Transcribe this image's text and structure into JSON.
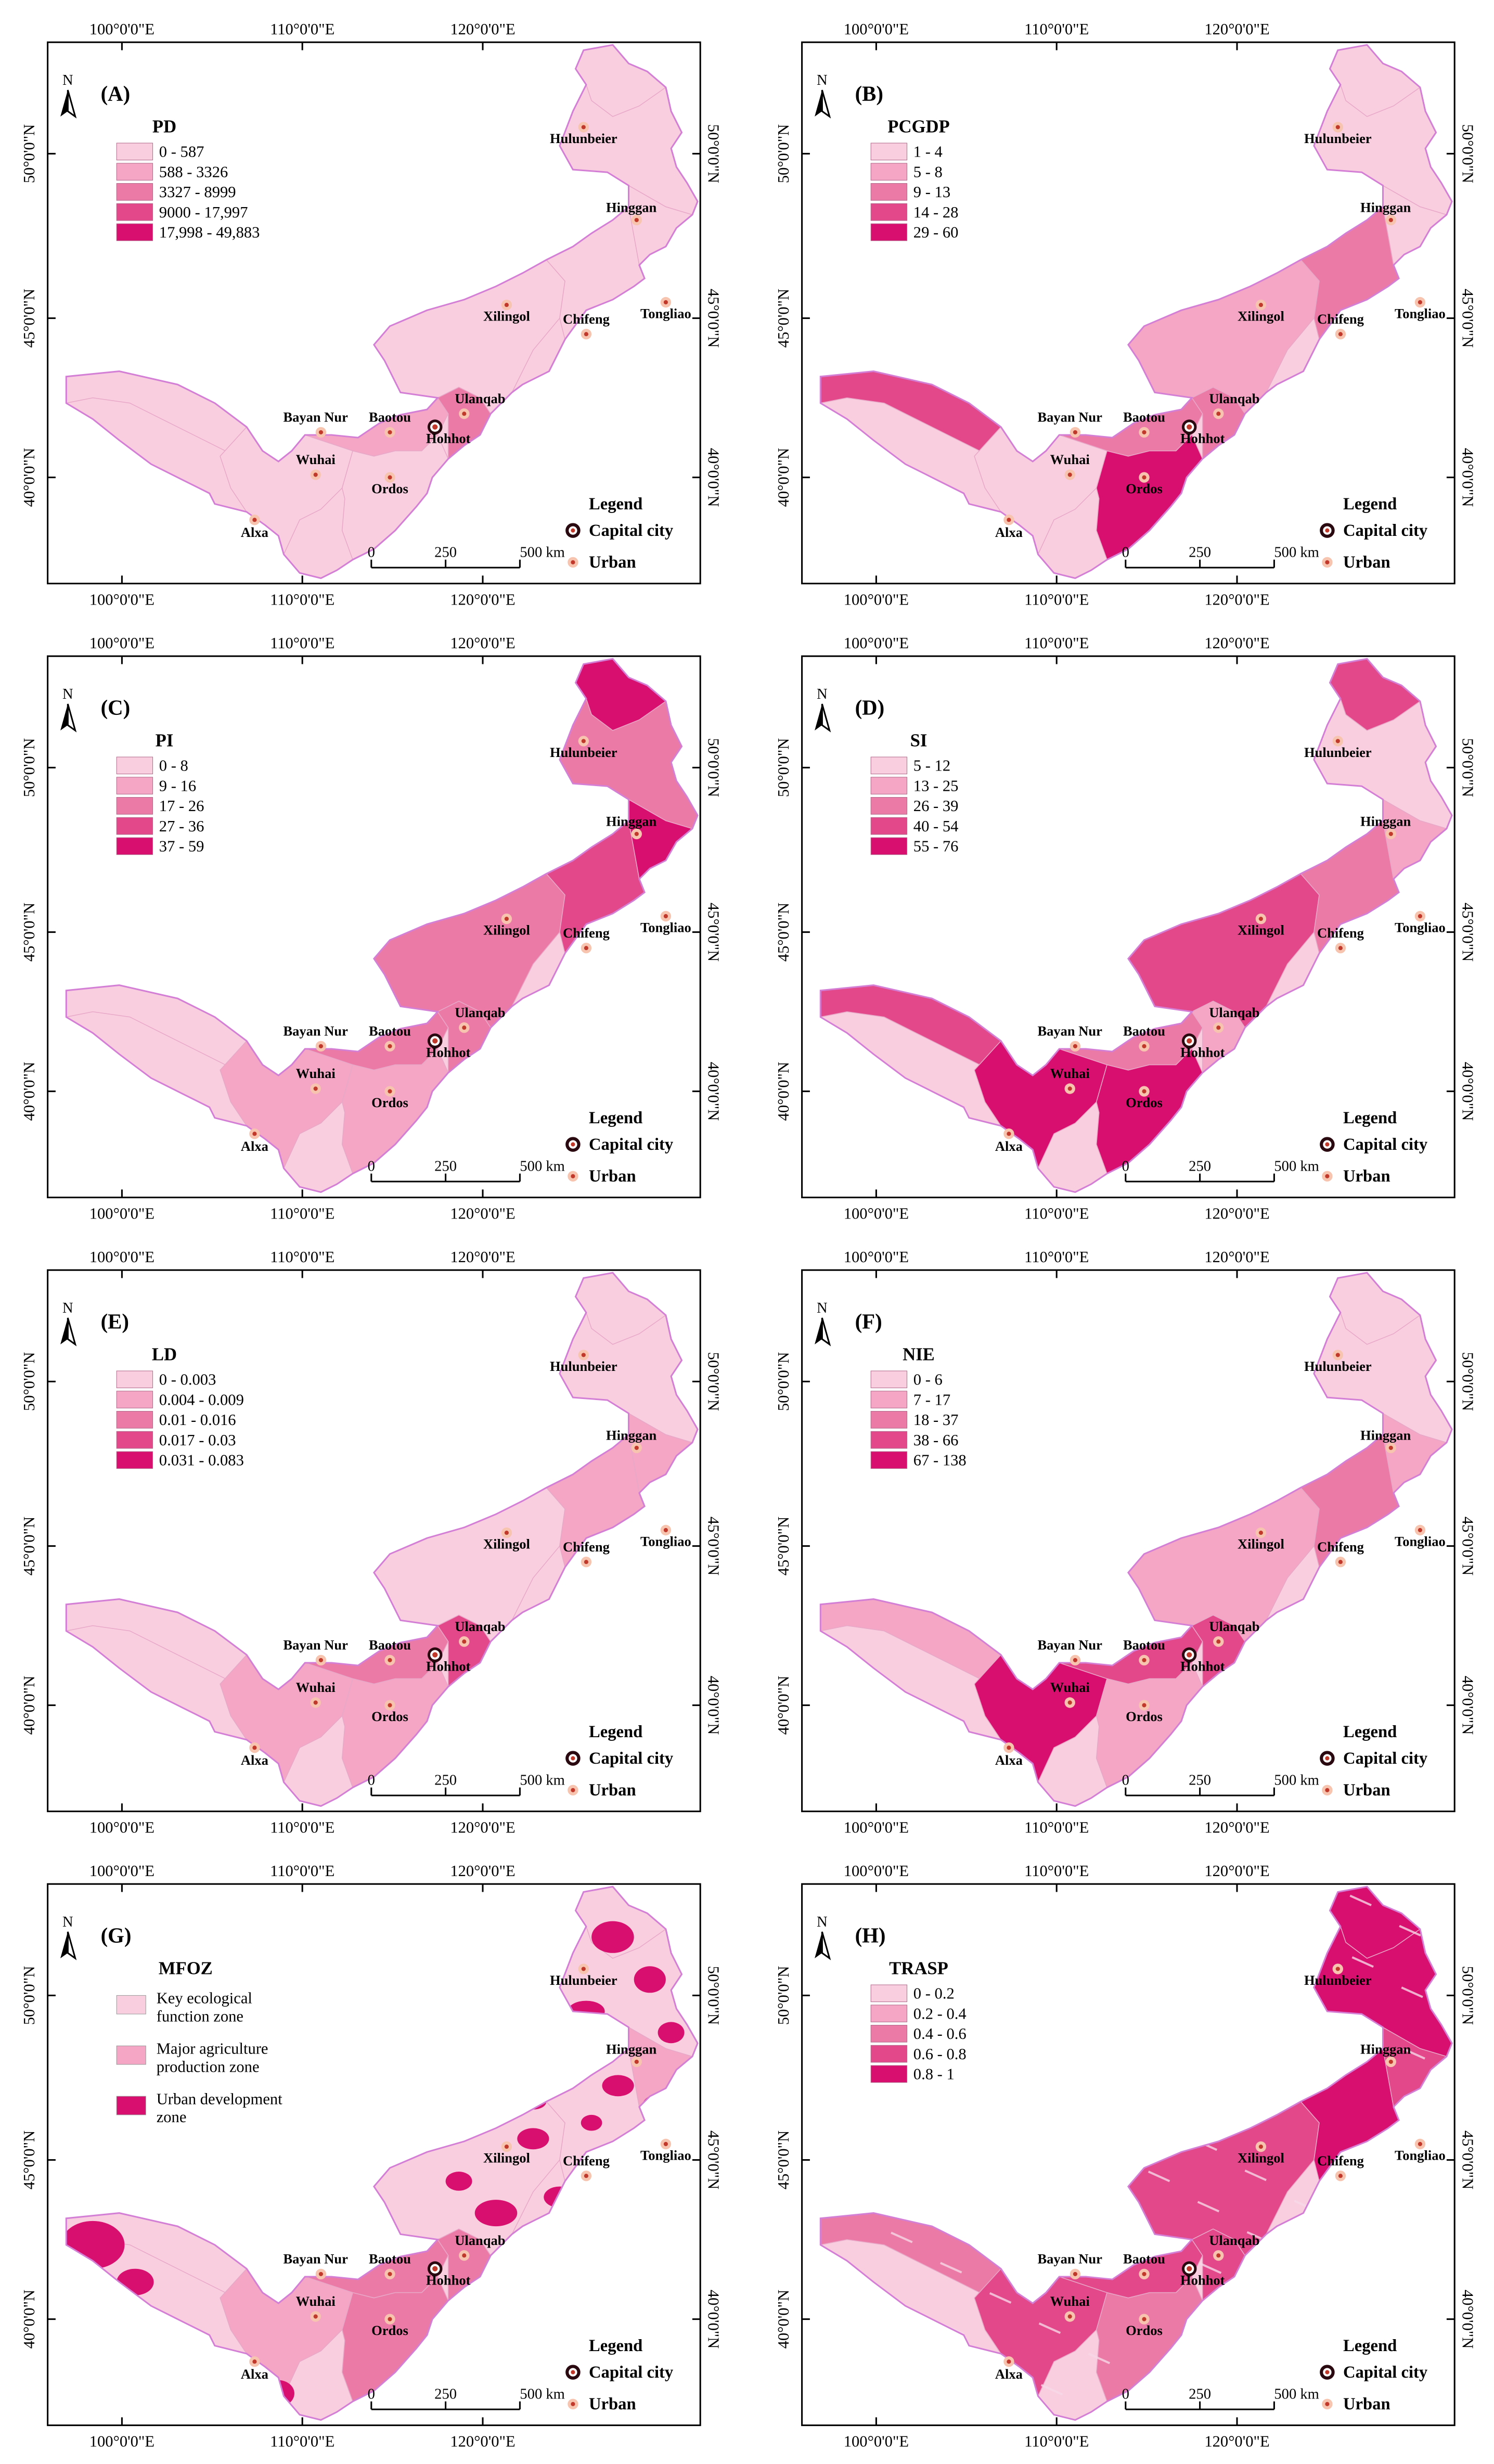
{
  "axis_labels": {
    "top": [
      "100°0'0\"E",
      "110°0'0\"E",
      "120°0'0\"E"
    ],
    "bottom": [
      "100°0'0\"E",
      "110°0'0\"E",
      "120°0'0\"E"
    ],
    "left": [
      "50°0'0\"N",
      "45°0'0\"N",
      "40°0'0\"N"
    ],
    "right": [
      "50°0'0\"N",
      "45°0'0\"N",
      "40°0'0\"N"
    ]
  },
  "north_label": "N",
  "cities": [
    {
      "name": "Hulunbeier",
      "type": "urban"
    },
    {
      "name": "Hinggan",
      "type": "urban"
    },
    {
      "name": "Xilingol",
      "type": "urban"
    },
    {
      "name": "Tongliao",
      "type": "urban"
    },
    {
      "name": "Chifeng",
      "type": "urban"
    },
    {
      "name": "Ulanqab",
      "type": "urban"
    },
    {
      "name": "Bayan Nur",
      "type": "urban"
    },
    {
      "name": "Baotou",
      "type": "urban"
    },
    {
      "name": "Hohhot",
      "type": "capital"
    },
    {
      "name": "Wuhai",
      "type": "urban"
    },
    {
      "name": "Ordos",
      "type": "urban"
    },
    {
      "name": "Alxa",
      "type": "urban"
    }
  ],
  "map_legend": {
    "title": "Legend",
    "capital_label": "Capital city",
    "urban_label": "Urban"
  },
  "scale_bar": {
    "ticks": [
      "0",
      "250",
      "500 km"
    ]
  },
  "colors": {
    "class1": "#f9cfe0",
    "class2": "#f4a6c4",
    "class3": "#ec7aa6",
    "class4": "#e2488a",
    "class5": "#d80f6e",
    "boundary": "#d47fd6",
    "frame": "#000000",
    "capital_outer": "#2a0a10",
    "capital_inner": "#c0392b",
    "urban_dot": "#c0392b",
    "urban_ring": "#f7c4b0"
  },
  "panels": [
    {
      "id": "A",
      "label": "(A)",
      "title": "PD",
      "classes": [
        "0 - 587",
        "588 - 3326",
        "3327 - 8999",
        "9000 - 17,997",
        "17,998 - 49,883"
      ]
    },
    {
      "id": "B",
      "label": "(B)",
      "title": "PCGDP",
      "classes": [
        "1 - 4",
        "5 - 8",
        "9 - 13",
        "14 - 28",
        "29 - 60"
      ]
    },
    {
      "id": "C",
      "label": "(C)",
      "title": "PI",
      "classes": [
        "0 - 8",
        "9 - 16",
        "17 - 26",
        "27 - 36",
        "37 - 59"
      ]
    },
    {
      "id": "D",
      "label": "(D)",
      "title": "SI",
      "classes": [
        "5 - 12",
        "13 - 25",
        "26 - 39",
        "40 - 54",
        "55 - 76"
      ]
    },
    {
      "id": "E",
      "label": "(E)",
      "title": "LD",
      "classes": [
        "0 - 0.003",
        "0.004 - 0.009",
        "0.01 - 0.016",
        "0.017 - 0.03",
        "0.031 - 0.083"
      ]
    },
    {
      "id": "F",
      "label": "(F)",
      "title": "NIE",
      "classes": [
        "0 - 6",
        "7 - 17",
        "18 - 37",
        "38 - 66",
        "67 - 138"
      ]
    },
    {
      "id": "G",
      "label": "(G)",
      "title": "MFOZ",
      "classes": [
        "Key ecological|function zone",
        "Major agriculture|production zone",
        "Urban development|zone"
      ]
    },
    {
      "id": "H",
      "label": "(H)",
      "title": "TRASP",
      "classes": [
        "0 - 0.2",
        "0.2 - 0.4",
        "0.4 - 0.6",
        "0.6 - 0.8",
        "0.8 - 1"
      ]
    }
  ]
}
